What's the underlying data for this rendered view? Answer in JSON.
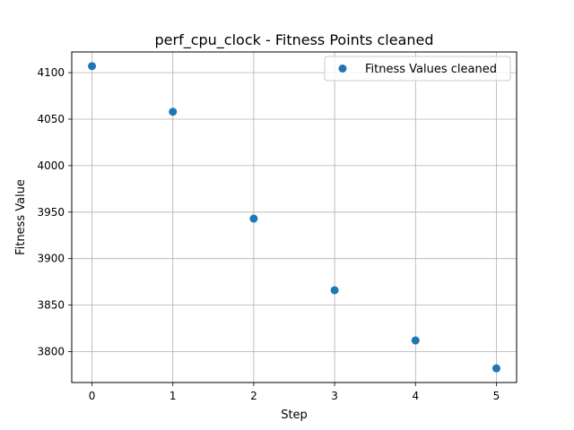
{
  "chart_data": {
    "type": "scatter",
    "title": "perf_cpu_clock - Fitness Points cleaned",
    "xlabel": "Step",
    "ylabel": "Fitness Value",
    "x": [
      0,
      1,
      2,
      3,
      4,
      5
    ],
    "series": [
      {
        "name": "Fitness Values cleaned",
        "color": "#1f77b4",
        "values": [
          4107,
          4058,
          3943,
          3866,
          3812,
          3782
        ]
      }
    ],
    "xlim": [
      -0.25,
      5.25
    ],
    "ylim": [
      3766.75,
      4122.25
    ],
    "xticks": [
      0,
      1,
      2,
      3,
      4,
      5
    ],
    "yticks": [
      3800,
      3850,
      3900,
      3950,
      4000,
      4050,
      4100
    ],
    "grid": true,
    "legend_position": "top-right"
  }
}
